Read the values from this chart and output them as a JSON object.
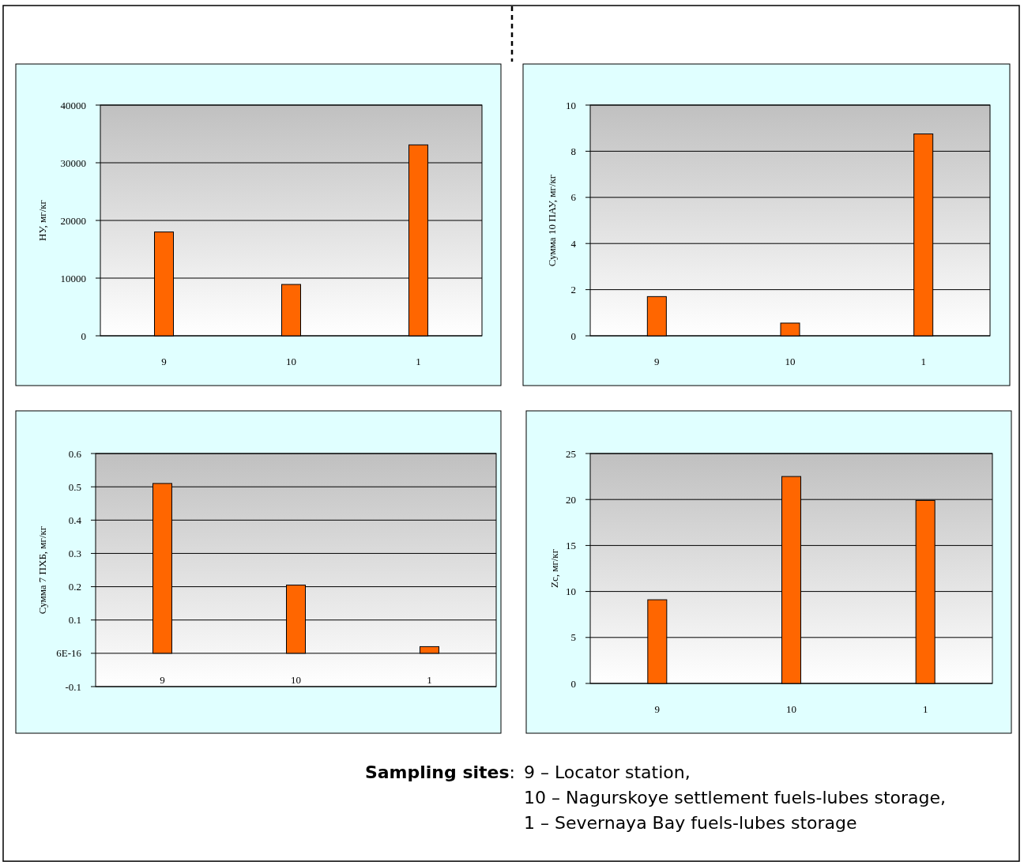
{
  "chart_data": [
    {
      "type": "bar",
      "ylabel": "НУ, мг/кг",
      "categories": [
        "9",
        "10",
        "1"
      ],
      "values": [
        18000,
        8900,
        33100
      ],
      "color": "#ff6600",
      "ylim": [
        0,
        40000
      ],
      "yticks": [
        0,
        10000,
        20000,
        30000,
        40000
      ],
      "grid": "y"
    },
    {
      "type": "bar",
      "ylabel": "Сумма 10 ПАУ, мг/кг",
      "categories": [
        "9",
        "10",
        "1"
      ],
      "values": [
        1.7,
        0.55,
        8.75
      ],
      "color": "#ff6600",
      "ylim": [
        0,
        10
      ],
      "yticks": [
        0,
        2,
        4,
        6,
        8,
        10
      ],
      "grid": "y"
    },
    {
      "type": "bar",
      "ylabel": "Сумма 7 ПХБ, мг/кг",
      "categories": [
        "9",
        "10",
        "1"
      ],
      "values": [
        0.51,
        0.205,
        0.02
      ],
      "color": "#ff6600",
      "ylim": [
        -0.1,
        0.6
      ],
      "yticks": [
        -0.1,
        {
          "value": 0,
          "label": "6E-16"
        },
        0.1,
        0.2,
        0.3,
        0.4,
        0.5,
        0.6
      ],
      "grid": "y"
    },
    {
      "type": "bar",
      "ylabel": "Zc, мг/кг",
      "categories": [
        "9",
        "10",
        "1"
      ],
      "values": [
        9.1,
        22.5,
        19.9
      ],
      "color": "#ff6600",
      "ylim": [
        0,
        25
      ],
      "yticks": [
        0,
        5,
        10,
        15,
        20,
        25
      ],
      "grid": "y",
      "annotations": [
        "Sampling sites: 9 – Locator station,",
        "10 – Nagurskoye settlement fuels-lubes storage,",
        "1 – Severnaya Bay fuels-lubes storage"
      ]
    }
  ]
}
